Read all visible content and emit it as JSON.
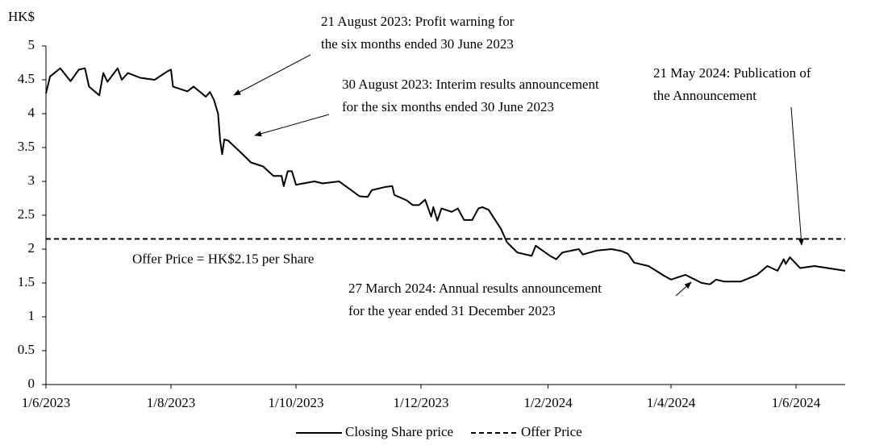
{
  "chart_data": {
    "type": "line",
    "y_axis_label": "HK$",
    "series": [
      {
        "name": "Closing Share price",
        "color": "#000000",
        "x": [
          "2023-06-01",
          "2023-06-03",
          "2023-06-08",
          "2023-06-13",
          "2023-06-17",
          "2023-06-20",
          "2023-06-22",
          "2023-06-27",
          "2023-06-29",
          "2023-07-01",
          "2023-07-06",
          "2023-07-08",
          "2023-07-11",
          "2023-07-17",
          "2023-07-24",
          "2023-07-30",
          "2023-08-01",
          "2023-08-02",
          "2023-08-09",
          "2023-08-12",
          "2023-08-18",
          "2023-08-20",
          "2023-08-22",
          "2023-08-24",
          "2023-08-25",
          "2023-08-26",
          "2023-08-27",
          "2023-08-29",
          "2023-09-05",
          "2023-09-09",
          "2023-09-15",
          "2023-09-20",
          "2023-09-24",
          "2023-09-25",
          "2023-09-27",
          "2023-09-29",
          "2023-10-01",
          "2023-10-10",
          "2023-10-14",
          "2023-10-22",
          "2023-10-28",
          "2023-11-01",
          "2023-11-05",
          "2023-11-07",
          "2023-11-14",
          "2023-11-17",
          "2023-11-18",
          "2023-11-24",
          "2023-11-27",
          "2023-11-30",
          "2023-12-03",
          "2023-12-06",
          "2023-12-07",
          "2023-12-09",
          "2023-12-11",
          "2023-12-16",
          "2023-12-19",
          "2023-12-22",
          "2023-12-26",
          "2023-12-29",
          "2023-12-31",
          "2024-01-03",
          "2024-01-09",
          "2024-01-12",
          "2024-01-17",
          "2024-01-24",
          "2024-01-26",
          "2024-02-02",
          "2024-02-05",
          "2024-02-08",
          "2024-02-16",
          "2024-02-18",
          "2024-02-25",
          "2024-03-03",
          "2024-03-08",
          "2024-03-11",
          "2024-03-14",
          "2024-03-21",
          "2024-03-29",
          "2024-04-01",
          "2024-04-08",
          "2024-04-16",
          "2024-04-20",
          "2024-04-23",
          "2024-04-27",
          "2024-05-05",
          "2024-05-13",
          "2024-05-18",
          "2024-05-23",
          "2024-05-26",
          "2024-05-27",
          "2024-05-29",
          "2024-06-03",
          "2024-06-10",
          "2024-06-25"
        ],
        "values": [
          4.3,
          4.55,
          4.67,
          4.48,
          4.65,
          4.67,
          4.4,
          4.27,
          4.6,
          4.47,
          4.67,
          4.5,
          4.6,
          4.53,
          4.5,
          4.62,
          4.65,
          4.4,
          4.33,
          4.4,
          4.25,
          4.32,
          4.2,
          4.0,
          3.6,
          3.4,
          3.62,
          3.6,
          3.4,
          3.28,
          3.22,
          3.08,
          3.08,
          2.93,
          3.15,
          3.15,
          2.95,
          3.0,
          2.97,
          3.0,
          2.87,
          2.78,
          2.77,
          2.87,
          2.92,
          2.93,
          2.8,
          2.72,
          2.65,
          2.65,
          2.73,
          2.48,
          2.62,
          2.42,
          2.6,
          2.55,
          2.6,
          2.43,
          2.43,
          2.6,
          2.62,
          2.58,
          2.3,
          2.1,
          1.95,
          1.9,
          2.05,
          1.9,
          1.85,
          1.95,
          2.0,
          1.92,
          1.98,
          2.0,
          1.97,
          1.93,
          1.8,
          1.75,
          1.6,
          1.55,
          1.62,
          1.5,
          1.48,
          1.55,
          1.52,
          1.52,
          1.62,
          1.75,
          1.68,
          1.85,
          1.78,
          1.88,
          1.72,
          1.75,
          1.68
        ]
      }
    ],
    "reference_lines": [
      {
        "name": "Offer Price",
        "value": 2.15,
        "label": "Offer Price = HK$2.15 per Share",
        "color": "#000000"
      }
    ],
    "xlim": [
      "2023-06-01",
      "2024-06-25"
    ],
    "xticks": [
      {
        "value": "2023-06-01",
        "label": "1/6/2023"
      },
      {
        "value": "2023-08-01",
        "label": "1/8/2023"
      },
      {
        "value": "2023-10-01",
        "label": "1/10/2023"
      },
      {
        "value": "2023-12-01",
        "label": "1/12/2023"
      },
      {
        "value": "2024-02-01",
        "label": "1/2/2024"
      },
      {
        "value": "2024-04-01",
        "label": "1/4/2024"
      },
      {
        "value": "2024-06-01",
        "label": "1/6/2024"
      }
    ],
    "ylim": [
      0,
      5
    ],
    "yticks": [
      0,
      0.5,
      1,
      1.5,
      2,
      2.5,
      3,
      3.5,
      4,
      4.5,
      5
    ],
    "annotations": [
      {
        "text": [
          "21 August 2023: Profit warning for",
          "the six months ended 30 June 2023"
        ]
      },
      {
        "text": [
          "30 August 2023: Interim results announcement",
          "for the six months ended 30 June 2023"
        ]
      },
      {
        "text": [
          "21 May 2024: Publication of",
          "the Announcement"
        ]
      },
      {
        "text": [
          "27 March 2024: Annual results announcement",
          "for the year ended 31 December 2023"
        ]
      }
    ],
    "legend": "bottom"
  }
}
